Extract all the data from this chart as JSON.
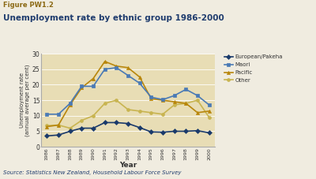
{
  "figure_label": "Figure PW1.2",
  "title": "Unemployment rate by ethnic group 1986-2000",
  "xlabel": "Year",
  "ylabel": "Unemployment rate\n(annual average per cent)",
  "source": "Source: Statistics New Zealand, Household Labour Force Survey",
  "years": [
    1986,
    1987,
    1988,
    1989,
    1990,
    1991,
    1992,
    1993,
    1994,
    1995,
    1996,
    1997,
    1998,
    1999,
    2000
  ],
  "series": {
    "European/Pakeha": [
      3.5,
      3.8,
      5.0,
      6.0,
      6.0,
      7.8,
      7.8,
      7.5,
      6.2,
      4.8,
      4.7,
      5.0,
      5.0,
      5.2,
      4.5
    ],
    "Maori": [
      10.5,
      10.5,
      14.0,
      19.5,
      19.5,
      25.0,
      25.5,
      23.0,
      20.5,
      16.0,
      15.2,
      16.5,
      18.5,
      16.5,
      13.5
    ],
    "Pacific": [
      6.5,
      7.0,
      13.5,
      19.0,
      22.0,
      27.5,
      26.0,
      25.5,
      22.5,
      15.5,
      15.0,
      14.5,
      14.0,
      11.0,
      11.5
    ],
    "Other": [
      6.8,
      7.0,
      6.0,
      8.5,
      10.0,
      14.0,
      15.0,
      12.0,
      11.5,
      11.0,
      10.5,
      13.5,
      14.0,
      15.0,
      9.5
    ]
  },
  "line_colors": {
    "European/Pakeha": "#1a3a6b",
    "Maori": "#4a7ab5",
    "Pacific": "#b8860b",
    "Other": "#c8b450"
  },
  "markers": {
    "European/Pakeha": "D",
    "Maori": "s",
    "Pacific": "^",
    "Other": "o"
  },
  "ylim": [
    0,
    30
  ],
  "yticks": [
    0,
    5,
    10,
    15,
    20,
    25,
    30
  ],
  "bg_color": "#e8ddb5",
  "fig_bg_color": "#f0ece0",
  "figure_label_color": "#8B6914",
  "title_color": "#1f3c6e",
  "source_color": "#1f3c6e",
  "markersize": 3.0,
  "linewidth": 1.2
}
